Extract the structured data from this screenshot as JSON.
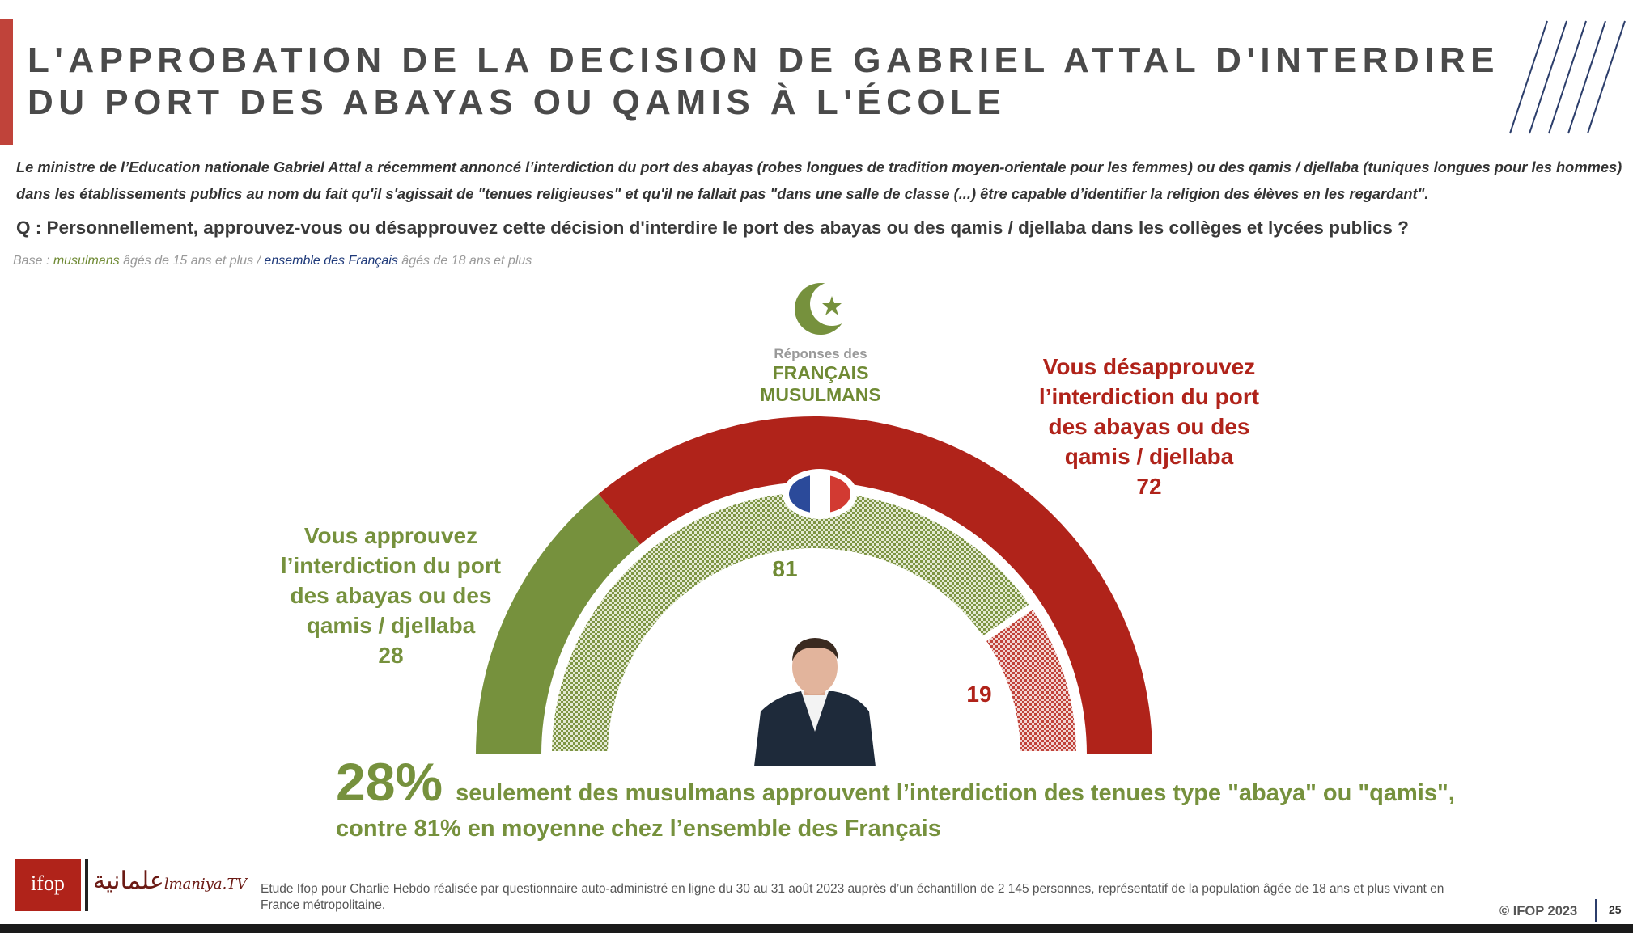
{
  "header": {
    "title_line1": "L'APPROBATION DE LA DECISION DE GABRIEL ATTAL D'INTERDIRE",
    "title_line2": "DU PORT DES ABAYAS OU QAMIS À L'ÉCOLE"
  },
  "intro": "Le ministre de l’Education nationale Gabriel Attal a récemment annoncé l’interdiction du port des abayas (robes longues de tradition moyen-orientale pour les femmes) ou des qamis / djellaba (tuniques longues pour les hommes) dans les établissements publics au nom du fait qu'il s'agissait de \"tenues religieuses\" et qu'il ne fallait pas \"dans une salle de classe (...) être capable d’identifier la religion des élèves en les regardant\".",
  "question": "Q : Personnellement, approuvez-vous ou désapprouvez cette décision d'interdire le port des abayas ou des qamis / djellaba dans les collèges et lycées publics ?",
  "base": [
    "Base : ",
    "musulmans",
    " âgés de 15 ans et plus / ",
    "ensemble des Français",
    " âgés de 18 ans et plus"
  ],
  "muslim_label": [
    "Réponses des",
    "FRANÇAIS",
    "MUSULMANS"
  ],
  "chart_data": {
    "type": "semi-donut",
    "categories": [
      "Vous approuvez l’interdiction du port des abayas ou des qamis / djellaba",
      "Vous désapprouvez l’interdiction du port des abayas ou des qamis / djellaba"
    ],
    "series": [
      {
        "colors": [
          "#76913d",
          "#b0231a"
        ],
        "values": [
          28,
          72
        ]
      },
      {
        "colors": [
          "#7d9444",
          "#c0433a"
        ],
        "values": [
          81,
          19
        ],
        "pattern": "checker"
      }
    ]
  },
  "conclusion": {
    "highlight": "28%",
    "text": "seulement des musulmans approuvent l’interdiction des tenues type \"abaya\" ou \"qamis\", contre 81% en moyenne chez l’ensemble des Français"
  },
  "footer": {
    "logo1": "ifop",
    "logo2_arabic": "علمانية",
    "logo2": "lmaniya.TV",
    "note": "Etude Ifop pour Charlie Hebdo réalisée par questionnaire auto-administré en ligne du 30 au 31 août 2023 auprès d’un échantillon de 2 145 personnes, représentatif de la population âgée de 18 ans et plus vivant en France métropolitaine.",
    "copyright": "© IFOP 2023",
    "page": "25"
  }
}
